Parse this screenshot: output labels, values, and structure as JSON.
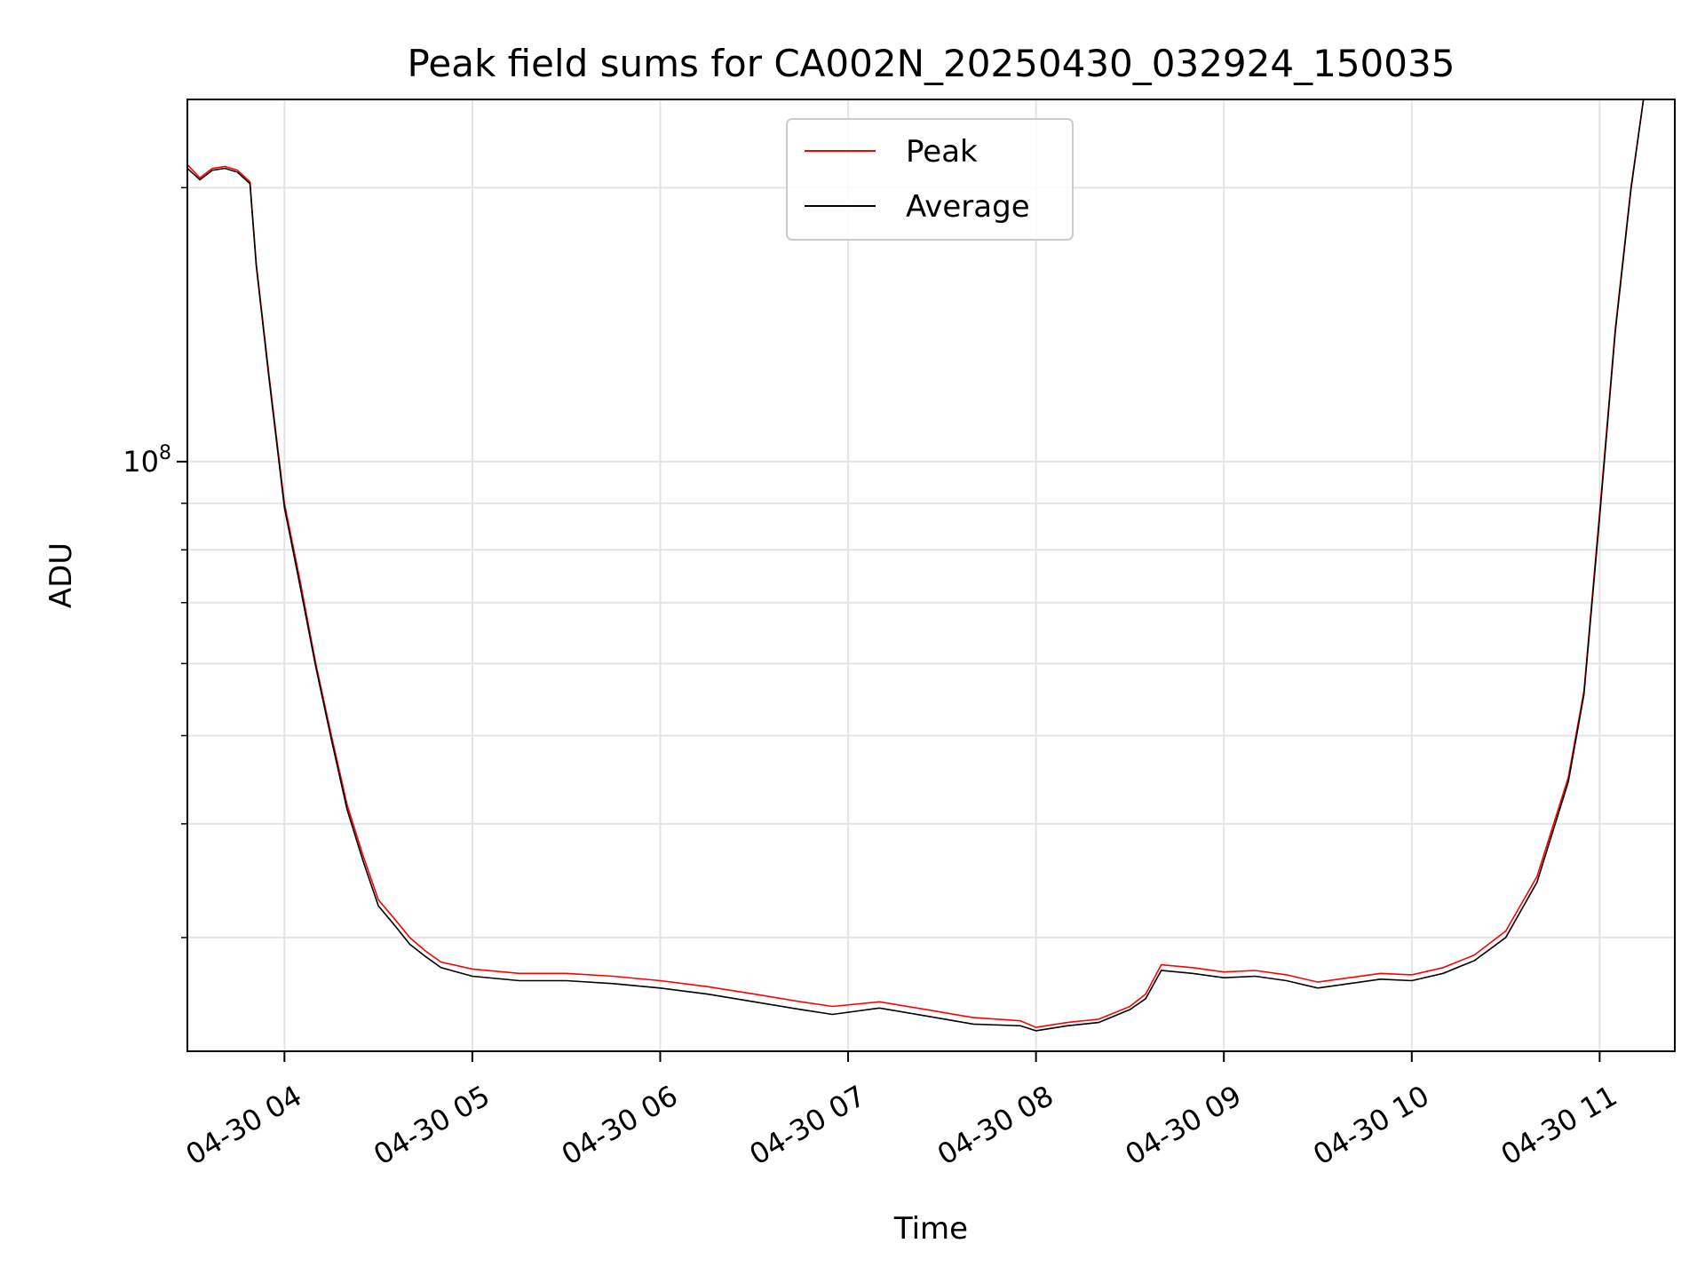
{
  "chart_data": {
    "type": "line",
    "title": "Peak field sums for CA002N_20250430_032924_150035",
    "xlabel": "Time",
    "ylabel": "ADU",
    "y_scale": "log",
    "ylim": [
      22500000,
      250000000
    ],
    "xlim": [
      "2025-04-30 03:29",
      "2025-04-30 11:24"
    ],
    "grid": true,
    "legend_placement": "upper center",
    "x_ticks": [
      {
        "t": "2025-04-30 04:00",
        "label": "04-30 04"
      },
      {
        "t": "2025-04-30 05:00",
        "label": "04-30 05"
      },
      {
        "t": "2025-04-30 06:00",
        "label": "04-30 06"
      },
      {
        "t": "2025-04-30 07:00",
        "label": "04-30 07"
      },
      {
        "t": "2025-04-30 08:00",
        "label": "04-30 08"
      },
      {
        "t": "2025-04-30 09:00",
        "label": "04-30 09"
      },
      {
        "t": "2025-04-30 10:00",
        "label": "04-30 10"
      },
      {
        "t": "2025-04-30 11:00",
        "label": "04-30 11"
      }
    ],
    "y_major_ticks": [
      {
        "value": 100000000,
        "base": "10",
        "exp": "8"
      }
    ],
    "y_minor_ticks": [
      30000000,
      40000000,
      50000000,
      60000000,
      70000000,
      80000000,
      90000000,
      200000000
    ],
    "series": [
      {
        "name": "Peak",
        "color": "#ff0000",
        "points": [
          [
            "2025-04-30 03:29",
            212000000
          ],
          [
            "2025-04-30 03:33",
            205000000
          ],
          [
            "2025-04-30 03:37",
            210000000
          ],
          [
            "2025-04-30 03:41",
            211000000
          ],
          [
            "2025-04-30 03:45",
            209000000
          ],
          [
            "2025-04-30 03:49",
            203000000
          ],
          [
            "2025-04-30 03:51",
            165000000
          ],
          [
            "2025-04-30 03:55",
            125000000
          ],
          [
            "2025-04-30 04:00",
            90000000
          ],
          [
            "2025-04-30 04:05",
            74000000
          ],
          [
            "2025-04-30 04:10",
            60000000
          ],
          [
            "2025-04-30 04:15",
            50000000
          ],
          [
            "2025-04-30 04:20",
            42000000
          ],
          [
            "2025-04-30 04:25",
            37000000
          ],
          [
            "2025-04-30 04:30",
            33000000
          ],
          [
            "2025-04-30 04:35",
            31500000
          ],
          [
            "2025-04-30 04:40",
            30000000
          ],
          [
            "2025-04-30 04:45",
            29000000
          ],
          [
            "2025-04-30 04:50",
            28200000
          ],
          [
            "2025-04-30 05:00",
            27700000
          ],
          [
            "2025-04-30 05:15",
            27400000
          ],
          [
            "2025-04-30 05:30",
            27400000
          ],
          [
            "2025-04-30 05:45",
            27200000
          ],
          [
            "2025-04-30 06:00",
            26900000
          ],
          [
            "2025-04-30 06:15",
            26500000
          ],
          [
            "2025-04-30 06:30",
            26000000
          ],
          [
            "2025-04-30 06:45",
            25500000
          ],
          [
            "2025-04-30 06:55",
            25200000
          ],
          [
            "2025-04-30 07:10",
            25500000
          ],
          [
            "2025-04-30 07:25",
            25000000
          ],
          [
            "2025-04-30 07:40",
            24500000
          ],
          [
            "2025-04-30 07:55",
            24300000
          ],
          [
            "2025-04-30 08:00",
            23900000
          ],
          [
            "2025-04-30 08:10",
            24200000
          ],
          [
            "2025-04-30 08:20",
            24400000
          ],
          [
            "2025-04-30 08:30",
            25200000
          ],
          [
            "2025-04-30 08:35",
            26000000
          ],
          [
            "2025-04-30 08:40",
            28000000
          ],
          [
            "2025-04-30 08:50",
            27800000
          ],
          [
            "2025-04-30 09:00",
            27500000
          ],
          [
            "2025-04-30 09:10",
            27600000
          ],
          [
            "2025-04-30 09:20",
            27300000
          ],
          [
            "2025-04-30 09:30",
            26800000
          ],
          [
            "2025-04-30 09:40",
            27100000
          ],
          [
            "2025-04-30 09:50",
            27400000
          ],
          [
            "2025-04-30 10:00",
            27300000
          ],
          [
            "2025-04-30 10:10",
            27800000
          ],
          [
            "2025-04-30 10:20",
            28700000
          ],
          [
            "2025-04-30 10:30",
            30500000
          ],
          [
            "2025-04-30 10:40",
            35000000
          ],
          [
            "2025-04-30 10:50",
            45000000
          ],
          [
            "2025-04-30 10:55",
            56000000
          ],
          [
            "2025-04-30 11:00",
            88000000
          ],
          [
            "2025-04-30 11:05",
            140000000
          ],
          [
            "2025-04-30 11:10",
            200000000
          ],
          [
            "2025-04-30 11:14",
            250000000
          ]
        ]
      },
      {
        "name": "Average",
        "color": "#000000",
        "points": [
          [
            "2025-04-30 03:29",
            210000000
          ],
          [
            "2025-04-30 03:33",
            204000000
          ],
          [
            "2025-04-30 03:37",
            209000000
          ],
          [
            "2025-04-30 03:41",
            210000000
          ],
          [
            "2025-04-30 03:45",
            208000000
          ],
          [
            "2025-04-30 03:49",
            202000000
          ],
          [
            "2025-04-30 03:51",
            164000000
          ],
          [
            "2025-04-30 03:55",
            124000000
          ],
          [
            "2025-04-30 04:00",
            89000000
          ],
          [
            "2025-04-30 04:05",
            73000000
          ],
          [
            "2025-04-30 04:10",
            59500000
          ],
          [
            "2025-04-30 04:15",
            49500000
          ],
          [
            "2025-04-30 04:20",
            41500000
          ],
          [
            "2025-04-30 04:25",
            36500000
          ],
          [
            "2025-04-30 04:30",
            32500000
          ],
          [
            "2025-04-30 04:35",
            31000000
          ],
          [
            "2025-04-30 04:40",
            29500000
          ],
          [
            "2025-04-30 04:45",
            28600000
          ],
          [
            "2025-04-30 04:50",
            27800000
          ],
          [
            "2025-04-30 05:00",
            27200000
          ],
          [
            "2025-04-30 05:15",
            26900000
          ],
          [
            "2025-04-30 05:30",
            26900000
          ],
          [
            "2025-04-30 05:45",
            26700000
          ],
          [
            "2025-04-30 06:00",
            26400000
          ],
          [
            "2025-04-30 06:15",
            26000000
          ],
          [
            "2025-04-30 06:30",
            25500000
          ],
          [
            "2025-04-30 06:45",
            25000000
          ],
          [
            "2025-04-30 06:55",
            24700000
          ],
          [
            "2025-04-30 07:10",
            25100000
          ],
          [
            "2025-04-30 07:25",
            24600000
          ],
          [
            "2025-04-30 07:40",
            24100000
          ],
          [
            "2025-04-30 07:55",
            24000000
          ],
          [
            "2025-04-30 08:00",
            23700000
          ],
          [
            "2025-04-30 08:10",
            24000000
          ],
          [
            "2025-04-30 08:20",
            24200000
          ],
          [
            "2025-04-30 08:30",
            25000000
          ],
          [
            "2025-04-30 08:35",
            25700000
          ],
          [
            "2025-04-30 08:40",
            27600000
          ],
          [
            "2025-04-30 08:50",
            27400000
          ],
          [
            "2025-04-30 09:00",
            27100000
          ],
          [
            "2025-04-30 09:10",
            27200000
          ],
          [
            "2025-04-30 09:20",
            26900000
          ],
          [
            "2025-04-30 09:30",
            26400000
          ],
          [
            "2025-04-30 09:40",
            26700000
          ],
          [
            "2025-04-30 09:50",
            27000000
          ],
          [
            "2025-04-30 10:00",
            26900000
          ],
          [
            "2025-04-30 10:10",
            27400000
          ],
          [
            "2025-04-30 10:20",
            28300000
          ],
          [
            "2025-04-30 10:30",
            30000000
          ],
          [
            "2025-04-30 10:40",
            34500000
          ],
          [
            "2025-04-30 10:50",
            44500000
          ],
          [
            "2025-04-30 10:55",
            55500000
          ],
          [
            "2025-04-30 11:00",
            87000000
          ],
          [
            "2025-04-30 11:05",
            139000000
          ],
          [
            "2025-04-30 11:10",
            199000000
          ],
          [
            "2025-04-30 11:14",
            250000000
          ]
        ]
      }
    ]
  }
}
